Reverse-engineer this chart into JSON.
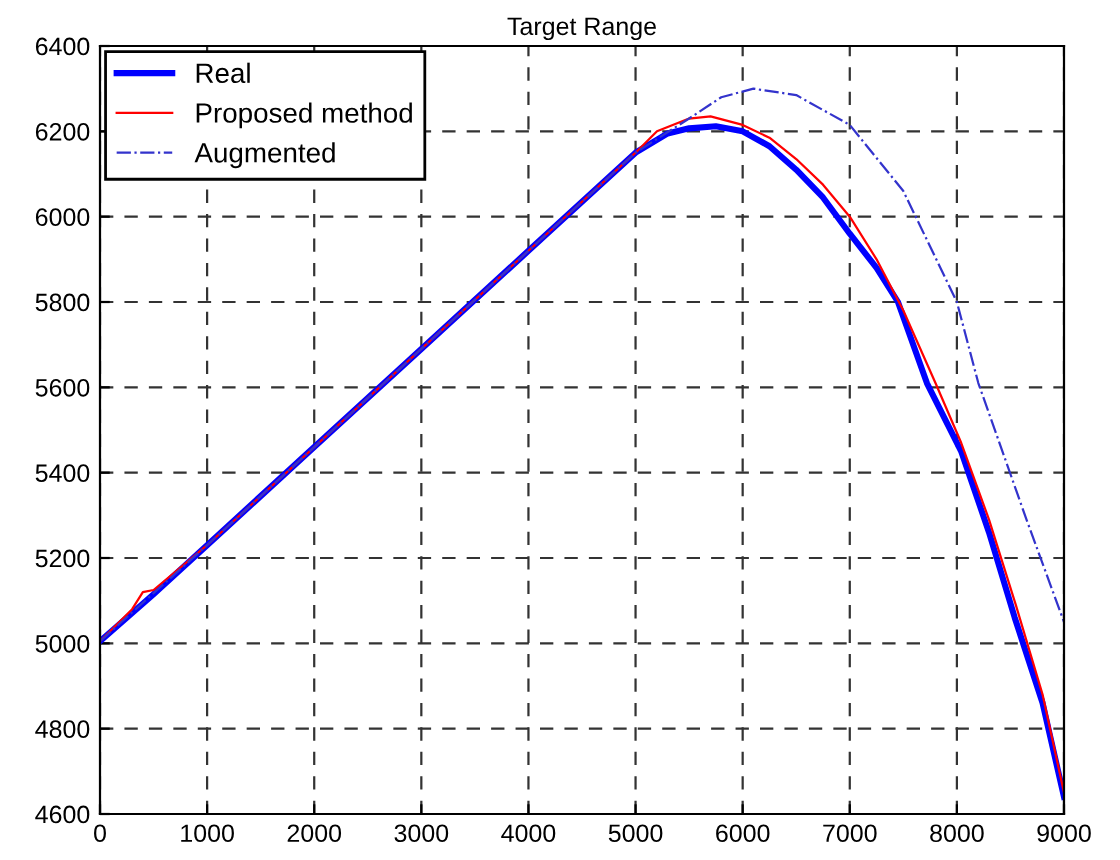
{
  "chart_data": {
    "type": "line",
    "title": "Target Range",
    "xlim": [
      0,
      9000
    ],
    "xticks": [
      0,
      1000,
      2000,
      3000,
      4000,
      5000,
      6000,
      7000,
      8000,
      9000
    ],
    "ylim": [
      4600,
      6400
    ],
    "yticks": [
      4600,
      4800,
      5000,
      5200,
      5400,
      5600,
      5800,
      6000,
      6200,
      6400
    ],
    "grid": true,
    "legend": "top left",
    "series": [
      {
        "name": "Real",
        "color": "#0000ff",
        "line_style": "solid",
        "x": [
          0,
          500,
          1000,
          2000,
          3000,
          4000,
          5000,
          5300,
          5500,
          5750,
          6000,
          6250,
          6500,
          6750,
          7000,
          7250,
          7450,
          7720,
          8040,
          8300,
          8540,
          8800,
          9000
        ],
        "values": [
          5005,
          5115,
          5230,
          5460,
          5690,
          5920,
          6150,
          6195,
          6207,
          6212,
          6200,
          6165,
          6110,
          6045,
          5960,
          5880,
          5800,
          5610,
          5450,
          5260,
          5060,
          4860,
          4640
        ]
      },
      {
        "name": "Proposed method",
        "color": "#ff0000",
        "line_style": "solid",
        "x": [
          0,
          300,
          400,
          500,
          1000,
          2000,
          3000,
          4000,
          5000,
          5200,
          5500,
          5700,
          6000,
          6250,
          6500,
          6750,
          7000,
          7250,
          7500,
          7800,
          8040,
          8300,
          8550,
          8800,
          9000
        ],
        "values": [
          5005,
          5080,
          5120,
          5125,
          5230,
          5460,
          5690,
          5920,
          6150,
          6200,
          6230,
          6235,
          6215,
          6185,
          6135,
          6075,
          6000,
          5900,
          5780,
          5610,
          5470,
          5290,
          5090,
          4880,
          4650
        ]
      },
      {
        "name": "Augmented",
        "color": "#3333cc",
        "line_style": "dashdot",
        "x": [
          0,
          1000,
          2000,
          3000,
          4000,
          5000,
          5500,
          5800,
          6100,
          6500,
          7000,
          7500,
          8000,
          8200,
          8650,
          9000
        ],
        "values": [
          5005,
          5230,
          5460,
          5690,
          5920,
          6150,
          6230,
          6280,
          6300,
          6285,
          6215,
          6060,
          5800,
          5610,
          5290,
          5050
        ]
      }
    ]
  }
}
